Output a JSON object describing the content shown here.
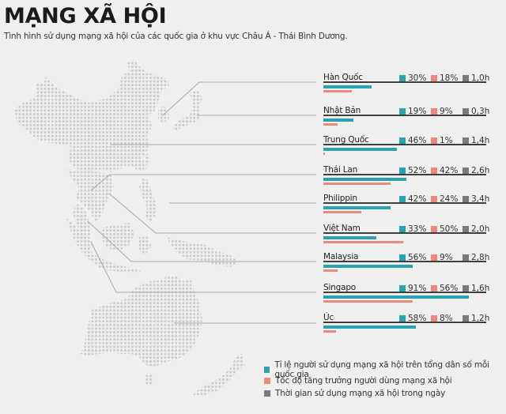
{
  "header": {
    "title": "MẠNG XÃ HỘI",
    "subtitle": "Tình hình sử dụng mạng xã hội của các quốc gia ở khu vực Châu Á - Thái Bình Dương."
  },
  "colors": {
    "penetration": "#2aa3b0",
    "growth": "#ea8a7c",
    "time": "#7a7a7a",
    "background": "#efeff0",
    "map_dot": "#c8c8ca",
    "leader_line": "#a8a8a8",
    "divider": "#3f3f3f"
  },
  "legend": {
    "items": [
      {
        "key": "penetration",
        "label": "Tỉ lệ người sử dụng mạng xã hội trên tổng dân số mỗi quốc gia"
      },
      {
        "key": "growth",
        "label": "Tốc độ tăng trưởng người dùng mạng xã hội"
      },
      {
        "key": "time",
        "label": "Thời gian sử dụng mạng xã hội trong ngày"
      }
    ]
  },
  "countries": [
    {
      "name": "Hàn Quốc",
      "penetration": "30%",
      "growth": "18%",
      "time": "1,0h"
    },
    {
      "name": "Nhật Bản",
      "penetration": "19%",
      "growth": "9%",
      "time": "0,3h"
    },
    {
      "name": "Trung Quốc",
      "penetration": "46%",
      "growth": "1%",
      "time": "1,4h"
    },
    {
      "name": "Thái Lan",
      "penetration": "52%",
      "growth": "42%",
      "time": "2,6h"
    },
    {
      "name": "Philippin",
      "penetration": "42%",
      "growth": "24%",
      "time": "3,4h"
    },
    {
      "name": "Việt Nam",
      "penetration": "33%",
      "growth": "50%",
      "time": "2,0h"
    },
    {
      "name": "Malaysia",
      "penetration": "56%",
      "growth": "9%",
      "time": "2,8h"
    },
    {
      "name": "Singapo",
      "penetration": "91%",
      "growth": "56%",
      "time": "1,6h"
    },
    {
      "name": "Úc",
      "penetration": "58%",
      "growth": "8%",
      "time": "1,2h"
    }
  ],
  "chart_data": {
    "type": "bar",
    "orientation": "horizontal",
    "title": "MẠNG XÃ HỘI",
    "subtitle": "Tình hình sử dụng mạng xã hội của các quốc gia ở khu vực Châu Á - Thái Bình Dương.",
    "categories": [
      "Hàn Quốc",
      "Nhật Bản",
      "Trung Quốc",
      "Thái Lan",
      "Philippin",
      "Việt Nam",
      "Malaysia",
      "Singapo",
      "Úc"
    ],
    "series": [
      {
        "name": "Tỉ lệ người sử dụng mạng xã hội trên tổng dân số mỗi quốc gia",
        "unit": "%",
        "color": "#2aa3b0",
        "values": [
          30,
          19,
          46,
          52,
          42,
          33,
          56,
          91,
          58
        ],
        "drawn_as_bar": true
      },
      {
        "name": "Tốc độ tăng trưởng người dùng mạng xã hội",
        "unit": "%",
        "color": "#ea8a7c",
        "values": [
          18,
          9,
          1,
          42,
          24,
          50,
          9,
          56,
          8
        ],
        "drawn_as_bar": true
      },
      {
        "name": "Thời gian sử dụng mạng xã hội trong ngày",
        "unit": "h",
        "color": "#7a7a7a",
        "values": [
          1.0,
          0.3,
          1.4,
          2.6,
          3.4,
          2.0,
          2.8,
          1.6,
          1.2
        ],
        "drawn_as_bar": false
      }
    ],
    "xlim": [
      0,
      100
    ],
    "grid": false,
    "legend_position": "bottom-right",
    "background_map": "dotted map of Asia-Pacific with leader lines to each country"
  }
}
